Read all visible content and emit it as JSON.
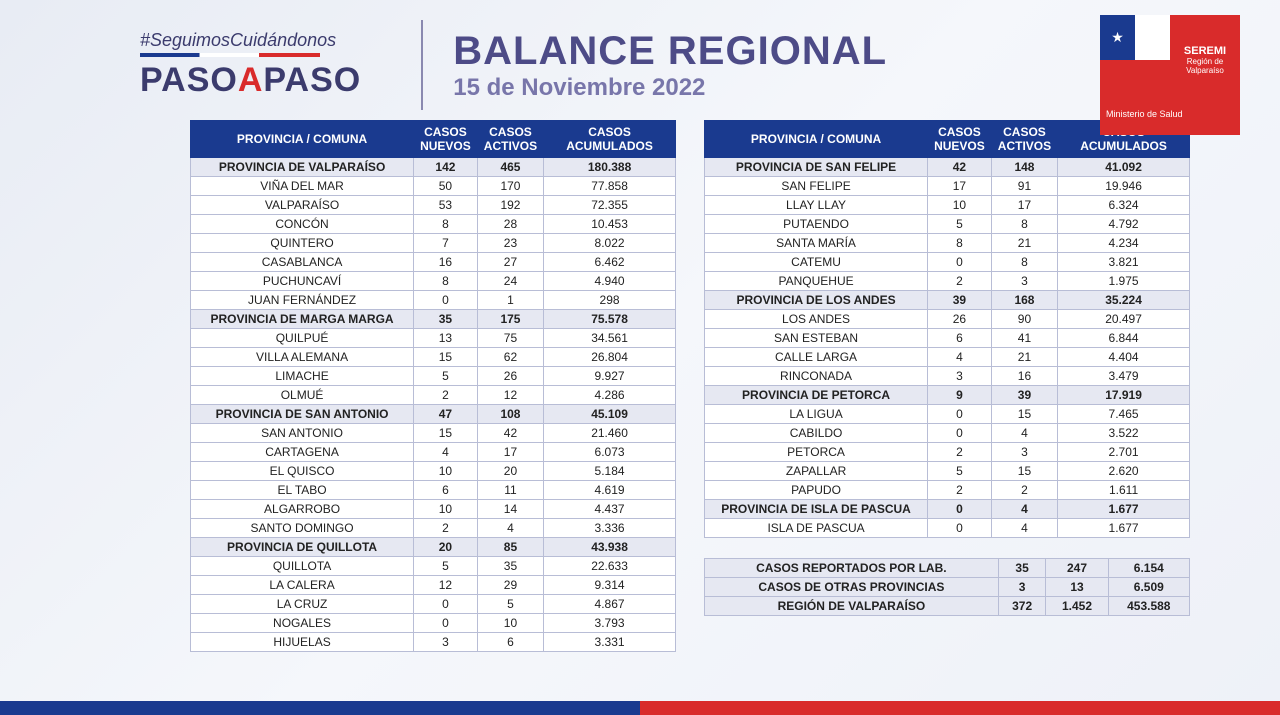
{
  "header": {
    "hashtag": "#SeguimosCuidándonos",
    "logo_line1": "PASO",
    "logo_a": "A",
    "logo_line2": "PASO",
    "title": "BALANCE REGIONAL",
    "date": "15 de Noviembre 2022",
    "seremi": "SEREMI",
    "seremi_sub": "Región de Valparaíso",
    "ministry": "Ministerio de Salud"
  },
  "columns": [
    "PROVINCIA / COMUNA",
    "CASOS NUEVOS",
    "CASOS ACTIVOS",
    "CASOS ACUMULADOS"
  ],
  "colors": {
    "header_bg": "#1a3a8f",
    "prov_bg": "#e6e8f2",
    "border": "#b8bdd6",
    "title": "#4d4b87",
    "date": "#7876aa",
    "red": "#d92b2b"
  },
  "left": [
    {
      "p": 1,
      "n": "PROVINCIA DE VALPARAÍSO",
      "a": "142",
      "b": "465",
      "c": "180.388"
    },
    {
      "n": "VIÑA DEL MAR",
      "a": "50",
      "b": "170",
      "c": "77.858"
    },
    {
      "n": "VALPARAÍSO",
      "a": "53",
      "b": "192",
      "c": "72.355"
    },
    {
      "n": "CONCÓN",
      "a": "8",
      "b": "28",
      "c": "10.453"
    },
    {
      "n": "QUINTERO",
      "a": "7",
      "b": "23",
      "c": "8.022"
    },
    {
      "n": "CASABLANCA",
      "a": "16",
      "b": "27",
      "c": "6.462"
    },
    {
      "n": "PUCHUNCAVÍ",
      "a": "8",
      "b": "24",
      "c": "4.940"
    },
    {
      "n": "JUAN FERNÁNDEZ",
      "a": "0",
      "b": "1",
      "c": "298"
    },
    {
      "p": 1,
      "n": "PROVINCIA DE MARGA MARGA",
      "a": "35",
      "b": "175",
      "c": "75.578"
    },
    {
      "n": "QUILPUÉ",
      "a": "13",
      "b": "75",
      "c": "34.561"
    },
    {
      "n": "VILLA ALEMANA",
      "a": "15",
      "b": "62",
      "c": "26.804"
    },
    {
      "n": "LIMACHE",
      "a": "5",
      "b": "26",
      "c": "9.927"
    },
    {
      "n": "OLMUÉ",
      "a": "2",
      "b": "12",
      "c": "4.286"
    },
    {
      "p": 1,
      "n": "PROVINCIA DE SAN ANTONIO",
      "a": "47",
      "b": "108",
      "c": "45.109"
    },
    {
      "n": "SAN ANTONIO",
      "a": "15",
      "b": "42",
      "c": "21.460"
    },
    {
      "n": "CARTAGENA",
      "a": "4",
      "b": "17",
      "c": "6.073"
    },
    {
      "n": "EL QUISCO",
      "a": "10",
      "b": "20",
      "c": "5.184"
    },
    {
      "n": "EL TABO",
      "a": "6",
      "b": "11",
      "c": "4.619"
    },
    {
      "n": "ALGARROBO",
      "a": "10",
      "b": "14",
      "c": "4.437"
    },
    {
      "n": "SANTO DOMINGO",
      "a": "2",
      "b": "4",
      "c": "3.336"
    },
    {
      "p": 1,
      "n": "PROVINCIA DE QUILLOTA",
      "a": "20",
      "b": "85",
      "c": "43.938"
    },
    {
      "n": "QUILLOTA",
      "a": "5",
      "b": "35",
      "c": "22.633"
    },
    {
      "n": "LA CALERA",
      "a": "12",
      "b": "29",
      "c": "9.314"
    },
    {
      "n": "LA CRUZ",
      "a": "0",
      "b": "5",
      "c": "4.867"
    },
    {
      "n": "NOGALES",
      "a": "0",
      "b": "10",
      "c": "3.793"
    },
    {
      "n": "HIJUELAS",
      "a": "3",
      "b": "6",
      "c": "3.331"
    }
  ],
  "right": [
    {
      "p": 1,
      "n": "PROVINCIA DE SAN FELIPE",
      "a": "42",
      "b": "148",
      "c": "41.092"
    },
    {
      "n": "SAN FELIPE",
      "a": "17",
      "b": "91",
      "c": "19.946"
    },
    {
      "n": "LLAY LLAY",
      "a": "10",
      "b": "17",
      "c": "6.324"
    },
    {
      "n": "PUTAENDO",
      "a": "5",
      "b": "8",
      "c": "4.792"
    },
    {
      "n": "SANTA MARÍA",
      "a": "8",
      "b": "21",
      "c": "4.234"
    },
    {
      "n": "CATEMU",
      "a": "0",
      "b": "8",
      "c": "3.821"
    },
    {
      "n": "PANQUEHUE",
      "a": "2",
      "b": "3",
      "c": "1.975"
    },
    {
      "p": 1,
      "n": "PROVINCIA DE LOS ANDES",
      "a": "39",
      "b": "168",
      "c": "35.224"
    },
    {
      "n": "LOS ANDES",
      "a": "26",
      "b": "90",
      "c": "20.497"
    },
    {
      "n": "SAN ESTEBAN",
      "a": "6",
      "b": "41",
      "c": "6.844"
    },
    {
      "n": "CALLE LARGA",
      "a": "4",
      "b": "21",
      "c": "4.404"
    },
    {
      "n": "RINCONADA",
      "a": "3",
      "b": "16",
      "c": "3.479"
    },
    {
      "p": 1,
      "n": "PROVINCIA DE PETORCA",
      "a": "9",
      "b": "39",
      "c": "17.919"
    },
    {
      "n": "LA LIGUA",
      "a": "0",
      "b": "15",
      "c": "7.465"
    },
    {
      "n": "CABILDO",
      "a": "0",
      "b": "4",
      "c": "3.522"
    },
    {
      "n": "PETORCA",
      "a": "2",
      "b": "3",
      "c": "2.701"
    },
    {
      "n": "ZAPALLAR",
      "a": "5",
      "b": "15",
      "c": "2.620"
    },
    {
      "n": "PAPUDO",
      "a": "2",
      "b": "2",
      "c": "1.611"
    },
    {
      "p": 1,
      "n": "PROVINCIA DE ISLA DE PASCUA",
      "a": "0",
      "b": "4",
      "c": "1.677"
    },
    {
      "n": "ISLA DE PASCUA",
      "a": "0",
      "b": "4",
      "c": "1.677"
    }
  ],
  "summary": [
    {
      "p": 1,
      "n": "CASOS REPORTADOS POR LAB.",
      "a": "35",
      "b": "247",
      "c": "6.154"
    },
    {
      "p": 1,
      "n": "CASOS DE OTRAS PROVINCIAS",
      "a": "3",
      "b": "13",
      "c": "6.509"
    },
    {
      "p": 1,
      "n": "REGIÓN DE VALPARAÍSO",
      "a": "372",
      "b": "1.452",
      "c": "453.588"
    }
  ]
}
